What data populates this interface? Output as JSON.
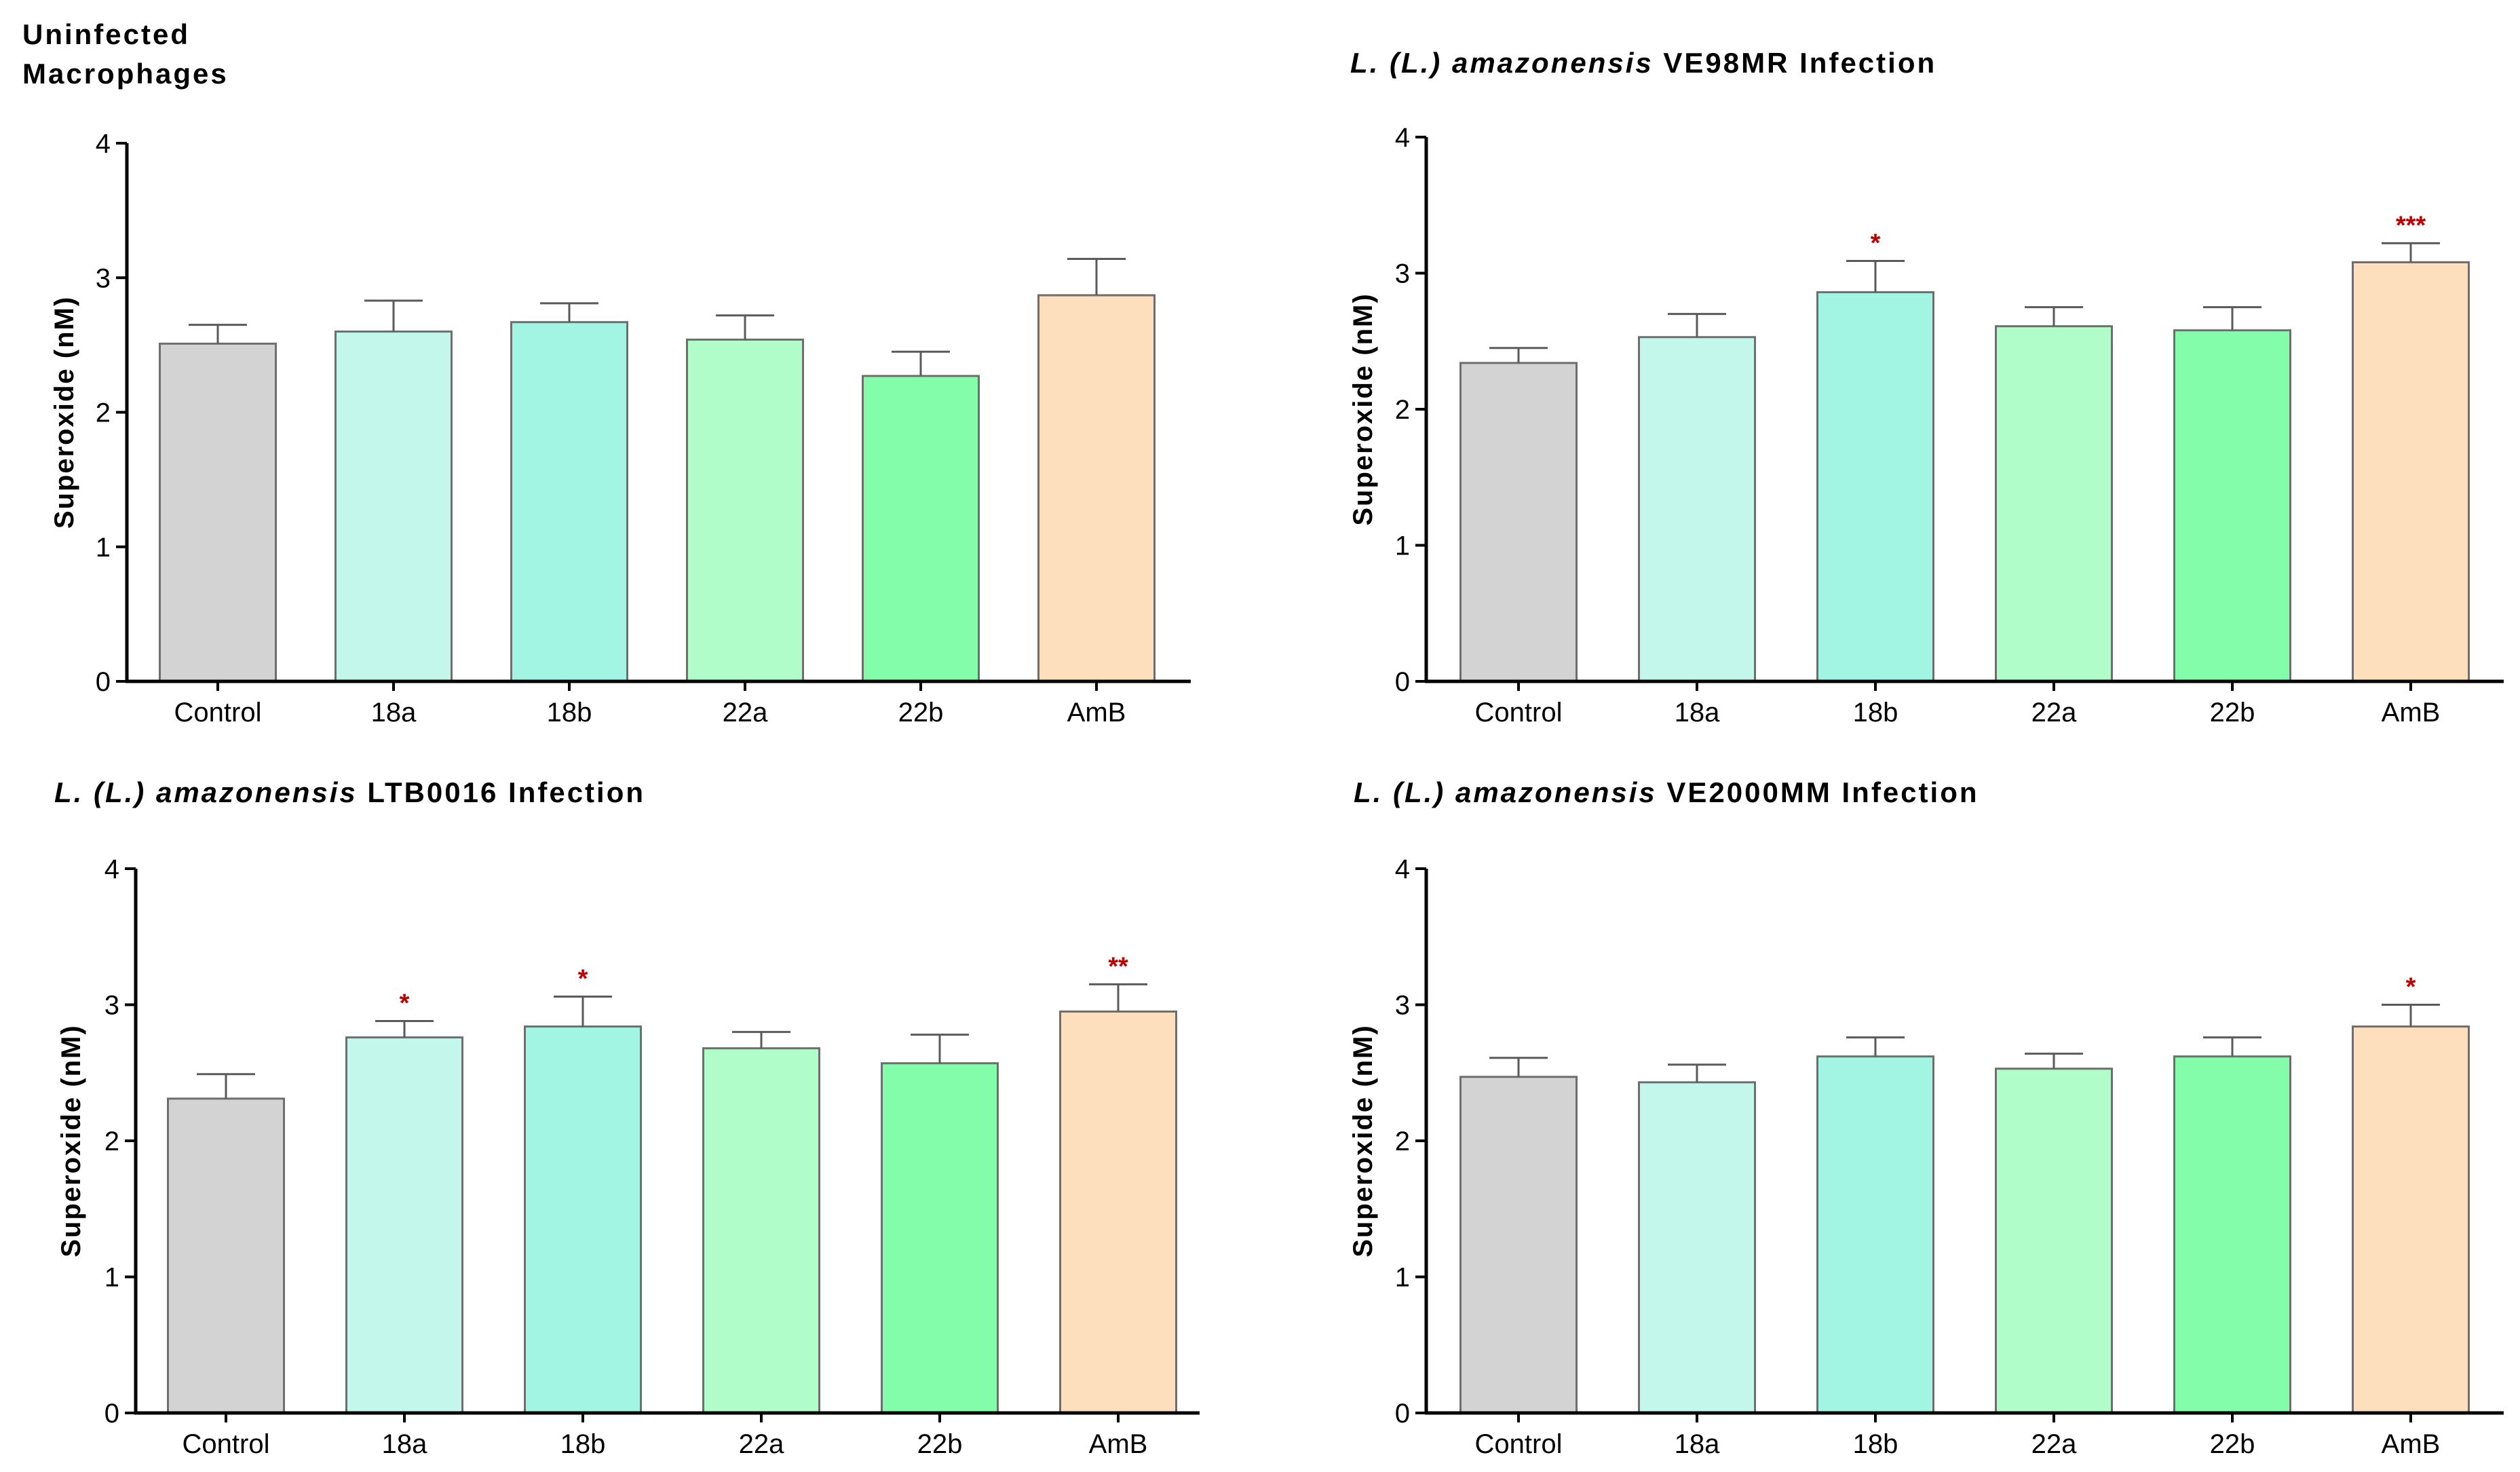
{
  "chart_data": [
    {
      "type": "bar",
      "title_lines": [
        "Uninfected",
        "Macrophages"
      ],
      "ylabel": "Superoxide (nM)",
      "xlabel": "",
      "ylim": [
        0,
        4
      ],
      "yticks": [
        "0",
        "1",
        "2",
        "3",
        "4"
      ],
      "categories": [
        "Control",
        "18a",
        "18b",
        "22a",
        "22b",
        "AmB"
      ],
      "values": [
        2.51,
        2.6,
        2.67,
        2.54,
        2.27,
        2.87
      ],
      "errors": [
        0.14,
        0.23,
        0.14,
        0.18,
        0.18,
        0.27
      ],
      "significance": [
        "",
        "",
        "",
        "",
        "",
        ""
      ],
      "colors": [
        "#D3D3D3",
        "#C3F7EB",
        "#A2F5E3",
        "#B1FDC9",
        "#84FDAA",
        "#FDDEBD"
      ]
    },
    {
      "type": "bar",
      "title_parts": [
        {
          "text": "L. (L.) amazonensis",
          "italic": true
        },
        {
          "text": " VE98MR Infection",
          "italic": false
        }
      ],
      "ylabel": "Superoxide (nM)",
      "xlabel": "",
      "ylim": [
        0,
        4
      ],
      "yticks": [
        "0",
        "1",
        "2",
        "3",
        "4"
      ],
      "categories": [
        "Control",
        "18a",
        "18b",
        "22a",
        "22b",
        "AmB"
      ],
      "values": [
        2.34,
        2.53,
        2.86,
        2.61,
        2.58,
        3.08
      ],
      "errors": [
        0.11,
        0.17,
        0.23,
        0.14,
        0.17,
        0.14
      ],
      "significance": [
        "",
        "",
        "*",
        "",
        "",
        "***"
      ],
      "colors": [
        "#D3D3D3",
        "#C3F7EB",
        "#A2F5E3",
        "#B1FDC9",
        "#84FDAA",
        "#FDDEBD"
      ]
    },
    {
      "type": "bar",
      "title_parts": [
        {
          "text": "L. (L.) amazonensis",
          "italic": true
        },
        {
          "text": " LTB0016 Infection",
          "italic": false
        }
      ],
      "ylabel": "Superoxide (nM)",
      "xlabel": "",
      "ylim": [
        0,
        4
      ],
      "yticks": [
        "0",
        "1",
        "2",
        "3",
        "4"
      ],
      "categories": [
        "Control",
        "18a",
        "18b",
        "22a",
        "22b",
        "AmB"
      ],
      "values": [
        2.31,
        2.76,
        2.84,
        2.68,
        2.57,
        2.95
      ],
      "errors": [
        0.18,
        0.12,
        0.22,
        0.12,
        0.21,
        0.2
      ],
      "significance": [
        "",
        "*",
        "*",
        "",
        "",
        "**"
      ],
      "colors": [
        "#D3D3D3",
        "#C3F7EB",
        "#A2F5E3",
        "#B1FDC9",
        "#84FDAA",
        "#FDDEBD"
      ]
    },
    {
      "type": "bar",
      "title_parts": [
        {
          "text": "L. (L.) amazonensis",
          "italic": true
        },
        {
          "text": " VE2000MM Infection",
          "italic": false
        }
      ],
      "ylabel": "Superoxide (nM)",
      "xlabel": "",
      "ylim": [
        0,
        4
      ],
      "yticks": [
        "0",
        "1",
        "2",
        "3",
        "4"
      ],
      "categories": [
        "Control",
        "18a",
        "18b",
        "22a",
        "22b",
        "AmB"
      ],
      "values": [
        2.47,
        2.43,
        2.62,
        2.53,
        2.62,
        2.84
      ],
      "errors": [
        0.14,
        0.13,
        0.14,
        0.11,
        0.14,
        0.16
      ],
      "significance": [
        "",
        "",
        "",
        "",
        "",
        "*"
      ],
      "colors": [
        "#D3D3D3",
        "#C3F7EB",
        "#A2F5E3",
        "#B1FDC9",
        "#84FDAA",
        "#FDDEBD"
      ]
    }
  ],
  "colors": {
    "axis": "#000000",
    "bar_outline": "#6E6E6E",
    "error_bar": "#5A5A5A",
    "significance": "#C00000"
  }
}
